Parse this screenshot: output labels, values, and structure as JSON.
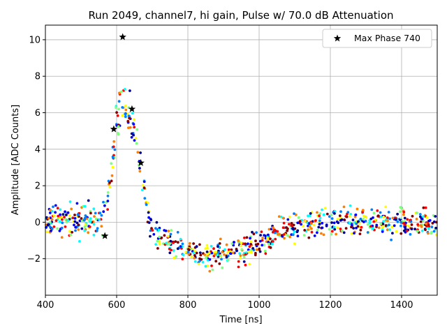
{
  "chart_data": {
    "type": "scatter",
    "title": "Run 2049, channel7, hi gain, Pulse w/ 70.0 dB Attenuation",
    "xlabel": "Time [ns]",
    "ylabel": "Amplitude [ADC Counts]",
    "xlim": [
      400,
      1500
    ],
    "ylim": [
      -4,
      10.8
    ],
    "xticks": [
      400,
      600,
      800,
      1000,
      1200,
      1400
    ],
    "yticks": [
      -2,
      0,
      2,
      4,
      6,
      8,
      10
    ],
    "grid": true,
    "legend_position": "top-right",
    "series": [
      {
        "name": "Max Phase 740",
        "marker": "star",
        "color": "#000000",
        "x": [
          567,
          592,
          617,
          643,
          668
        ],
        "y": [
          -0.75,
          5.1,
          10.15,
          6.2,
          3.25
        ]
      }
    ],
    "scatter_cloud": {
      "description_free": true,
      "colormap": [
        "#00008f",
        "#0000ff",
        "#0080ff",
        "#00ffff",
        "#80ff80",
        "#ffff00",
        "#ff8000",
        "#ff0000",
        "#800000"
      ],
      "profile": [
        [
          400,
          0.0
        ],
        [
          560,
          0.1
        ],
        [
          575,
          1.2
        ],
        [
          590,
          3.6
        ],
        [
          600,
          5.2
        ],
        [
          615,
          6.1
        ],
        [
          630,
          5.9
        ],
        [
          645,
          5.4
        ],
        [
          655,
          4.4
        ],
        [
          665,
          3.2
        ],
        [
          680,
          1.2
        ],
        [
          700,
          -0.4
        ],
        [
          720,
          -1.0
        ],
        [
          800,
          -1.5
        ],
        [
          850,
          -1.9
        ],
        [
          900,
          -1.8
        ],
        [
          950,
          -1.6
        ],
        [
          1000,
          -1.2
        ],
        [
          1050,
          -0.6
        ],
        [
          1100,
          -0.2
        ],
        [
          1200,
          0.05
        ],
        [
          1500,
          0.0
        ]
      ],
      "spread": 0.55,
      "point_count": 880
    }
  }
}
